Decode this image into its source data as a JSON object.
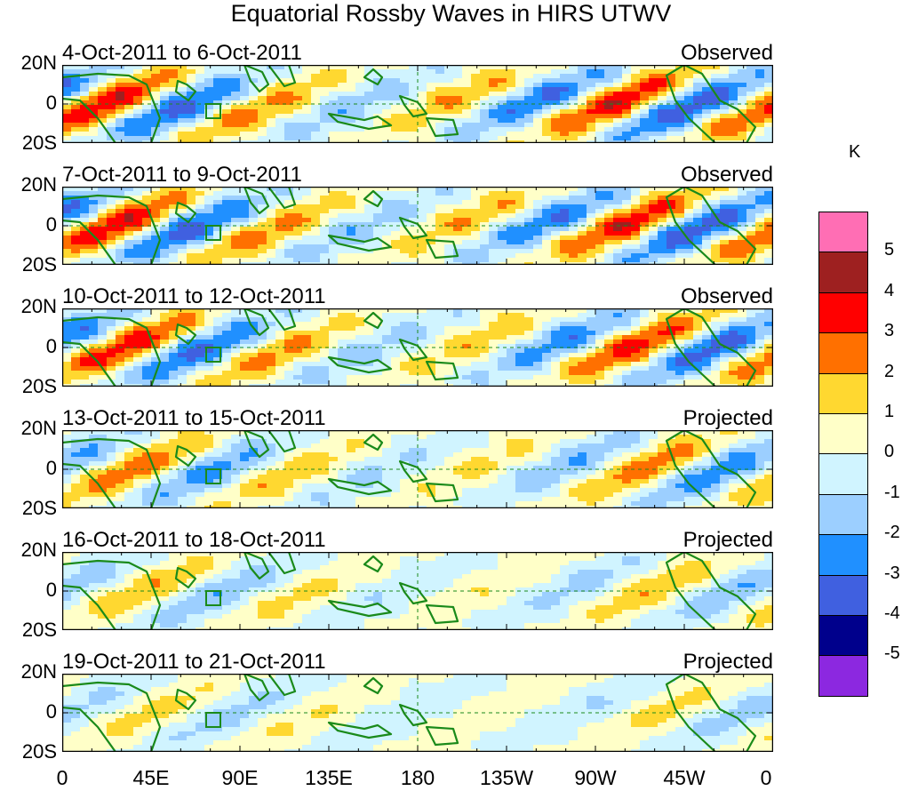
{
  "title": "Equatorial Rossby Waves in HIRS UTWV",
  "unit": "K",
  "lat_labels": [
    "20N",
    "0",
    "20S"
  ],
  "lon_labels": [
    "0",
    "45E",
    "90E",
    "135E",
    "180",
    "135W",
    "90W",
    "45W",
    "0"
  ],
  "panels": [
    {
      "date": "4-Oct-2011 to 6-Oct-2011",
      "status": "Observed",
      "amp": 1.0,
      "phase": 0.0
    },
    {
      "date": "7-Oct-2011 to 9-Oct-2011",
      "status": "Observed",
      "amp": 1.0,
      "phase": -0.35
    },
    {
      "date": "10-Oct-2011 to 12-Oct-2011",
      "status": "Observed",
      "amp": 0.92,
      "phase": -0.7
    },
    {
      "date": "13-Oct-2011 to 15-Oct-2011",
      "status": "Projected",
      "amp": 0.7,
      "phase": -1.05
    },
    {
      "date": "16-Oct-2011 to 18-Oct-2011",
      "status": "Projected",
      "amp": 0.5,
      "phase": -1.4
    },
    {
      "date": "19-Oct-2011 to 21-Oct-2011",
      "status": "Projected",
      "amp": 0.38,
      "phase": -1.75
    }
  ],
  "colorbar": {
    "levels": [
      "5",
      "4",
      "3",
      "2",
      "1",
      "0",
      "-1",
      "-2",
      "-3",
      "-4",
      "-5"
    ],
    "colors": [
      "#ff6eb4",
      "#9e2020",
      "#ff0000",
      "#ff7000",
      "#ffd830",
      "#ffffc8",
      "#d0f4ff",
      "#9ccfff",
      "#2090ff",
      "#4060e0",
      "#00008c",
      "#8c28e0"
    ]
  }
}
